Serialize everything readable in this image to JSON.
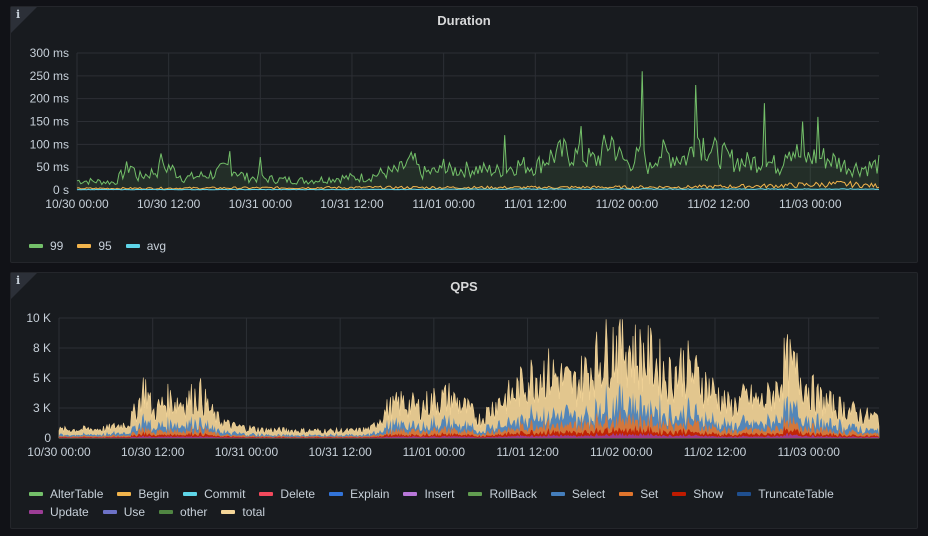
{
  "panels": {
    "duration": {
      "title": "Duration",
      "info_icon": "i",
      "legend": [
        {
          "label": "99",
          "color": "#73bf69"
        },
        {
          "label": "95",
          "color": "#f2b44c"
        },
        {
          "label": "avg",
          "color": "#5ed5e8"
        }
      ]
    },
    "qps": {
      "title": "QPS",
      "info_icon": "i",
      "legend": [
        {
          "label": "AlterTable",
          "color": "#73bf69"
        },
        {
          "label": "Begin",
          "color": "#f2b44c"
        },
        {
          "label": "Commit",
          "color": "#5ed5e8"
        },
        {
          "label": "Delete",
          "color": "#f2495c"
        },
        {
          "label": "Explain",
          "color": "#3274d9"
        },
        {
          "label": "Insert",
          "color": "#b877d9"
        },
        {
          "label": "RollBack",
          "color": "#629e51"
        },
        {
          "label": "Select",
          "color": "#447ebc"
        },
        {
          "label": "Set",
          "color": "#e0752d"
        },
        {
          "label": "Show",
          "color": "#bf1b00"
        },
        {
          "label": "TruncateTable",
          "color": "#1f4f8f"
        },
        {
          "label": "Update",
          "color": "#9c3d96"
        },
        {
          "label": "Use",
          "color": "#6d72c7"
        },
        {
          "label": "other",
          "color": "#508642"
        },
        {
          "label": "total",
          "color": "#f4d598"
        }
      ]
    }
  },
  "chart_data": [
    {
      "type": "line",
      "title": "Duration",
      "y_ticks": [
        "0 s",
        "50 ms",
        "100 ms",
        "150 ms",
        "200 ms",
        "250 ms",
        "300 ms"
      ],
      "x_ticks": [
        "10/30 00:00",
        "10/30 12:00",
        "10/31 00:00",
        "10/31 12:00",
        "11/01 00:00",
        "11/01 12:00",
        "11/02 00:00",
        "11/02 12:00",
        "11/03 00:00"
      ],
      "ylim": [
        0,
        300
      ],
      "y_unit": "ms",
      "x_range_hours": [
        0,
        105
      ],
      "series": [
        {
          "name": "99",
          "color": "#73bf69",
          "points": [
            [
              0,
              22
            ],
            [
              3,
              20
            ],
            [
              5,
              18
            ],
            [
              7,
              60
            ],
            [
              8,
              30
            ],
            [
              12,
              55
            ],
            [
              14,
              28
            ],
            [
              18,
              38
            ],
            [
              20,
              56
            ],
            [
              22,
              30
            ],
            [
              26,
              25
            ],
            [
              30,
              22
            ],
            [
              34,
              28
            ],
            [
              38,
              30
            ],
            [
              40,
              40
            ],
            [
              42,
              45
            ],
            [
              44,
              70
            ],
            [
              45,
              40
            ],
            [
              48,
              45
            ],
            [
              52,
              50
            ],
            [
              55,
              45
            ],
            [
              58,
              60
            ],
            [
              60,
              55
            ],
            [
              62,
              80
            ],
            [
              64,
              90
            ],
            [
              66,
              78
            ],
            [
              68,
              70
            ],
            [
              70,
              120
            ],
            [
              71,
              80
            ],
            [
              72,
              65
            ],
            [
              74,
              80
            ],
            [
              75,
              50
            ],
            [
              76,
              90
            ],
            [
              78,
              80
            ],
            [
              80,
              75
            ],
            [
              81,
              130
            ],
            [
              83,
              95
            ],
            [
              84,
              85
            ],
            [
              86,
              70
            ],
            [
              88,
              65
            ],
            [
              90,
              70
            ],
            [
              92,
              55
            ],
            [
              93,
              110
            ],
            [
              95,
              72
            ],
            [
              97,
              80
            ],
            [
              99,
              70
            ],
            [
              101,
              55
            ],
            [
              103,
              52
            ],
            [
              105,
              60
            ]
          ]
        },
        {
          "name": "95",
          "color": "#f2b44c",
          "points": [
            [
              0,
              3
            ],
            [
              20,
              4
            ],
            [
              40,
              5
            ],
            [
              60,
              5
            ],
            [
              80,
              6
            ],
            [
              90,
              8
            ],
            [
              95,
              10
            ],
            [
              100,
              12
            ],
            [
              105,
              8
            ]
          ]
        },
        {
          "name": "avg",
          "color": "#5ed5e8",
          "points": [
            [
              0,
              1
            ],
            [
              30,
              1
            ],
            [
              60,
              2
            ],
            [
              90,
              2
            ],
            [
              105,
              2
            ]
          ]
        }
      ],
      "spikes": [
        [
          11,
          80
        ],
        [
          20,
          85
        ],
        [
          24,
          72
        ],
        [
          48,
          68
        ],
        [
          56,
          120
        ],
        [
          66,
          140
        ],
        [
          74,
          260
        ],
        [
          81,
          230
        ],
        [
          90,
          190
        ],
        [
          95,
          150
        ],
        [
          97,
          160
        ]
      ]
    },
    {
      "type": "area",
      "title": "QPS",
      "y_ticks": [
        "0",
        "3 K",
        "5 K",
        "8 K",
        "10 K"
      ],
      "y_tick_values": [
        0,
        2500,
        5000,
        7500,
        10000
      ],
      "x_ticks": [
        "10/30 00:00",
        "10/30 12:00",
        "10/31 00:00",
        "10/31 12:00",
        "11/01 00:00",
        "11/01 12:00",
        "11/02 00:00",
        "11/02 12:00",
        "11/03 00:00"
      ],
      "ylim": [
        0,
        10000
      ],
      "x_range_hours": [
        0,
        105
      ],
      "total_envelope": [
        [
          0,
          800
        ],
        [
          6,
          900
        ],
        [
          9,
          1500
        ],
        [
          10,
          3000
        ],
        [
          11,
          5200
        ],
        [
          12,
          2500
        ],
        [
          14,
          3800
        ],
        [
          16,
          3500
        ],
        [
          18,
          4400
        ],
        [
          20,
          2000
        ],
        [
          22,
          1200
        ],
        [
          26,
          800
        ],
        [
          32,
          700
        ],
        [
          38,
          700
        ],
        [
          40,
          900
        ],
        [
          42,
          2800
        ],
        [
          44,
          3500
        ],
        [
          46,
          3000
        ],
        [
          48,
          3700
        ],
        [
          50,
          4000
        ],
        [
          52,
          3000
        ],
        [
          54,
          1800
        ],
        [
          56,
          3500
        ],
        [
          58,
          4200
        ],
        [
          60,
          5800
        ],
        [
          62,
          6600
        ],
        [
          64,
          6000
        ],
        [
          66,
          5200
        ],
        [
          68,
          7000
        ],
        [
          70,
          8500
        ],
        [
          72,
          9800
        ],
        [
          74,
          8200
        ],
        [
          76,
          7800
        ],
        [
          78,
          6000
        ],
        [
          80,
          7200
        ],
        [
          82,
          5800
        ],
        [
          84,
          4500
        ],
        [
          86,
          3000
        ],
        [
          88,
          4000
        ],
        [
          90,
          3500
        ],
        [
          92,
          4800
        ],
        [
          93,
          7500
        ],
        [
          95,
          6000
        ],
        [
          97,
          4000
        ],
        [
          99,
          3200
        ],
        [
          101,
          2800
        ],
        [
          103,
          2200
        ],
        [
          105,
          2000
        ]
      ],
      "stack_layers": [
        {
          "name": "Select",
          "color": "#447ebc",
          "fraction": 0.18
        },
        {
          "name": "Set",
          "color": "#e0752d",
          "fraction": 0.12
        },
        {
          "name": "Show",
          "color": "#bf1b00",
          "fraction": 0.06
        },
        {
          "name": "Update",
          "color": "#9c3d96",
          "fraction": 0.04
        }
      ]
    }
  ]
}
